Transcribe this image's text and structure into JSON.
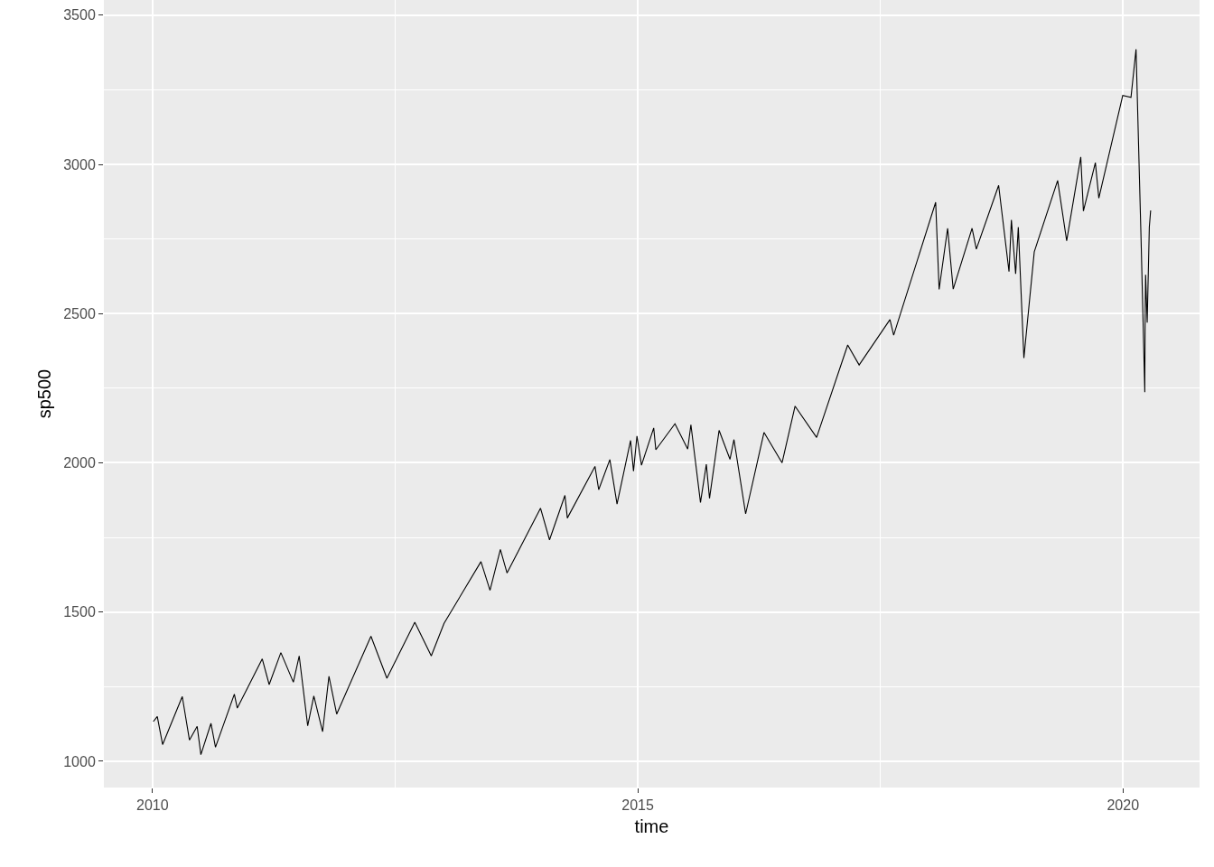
{
  "chart_data": {
    "type": "line",
    "xlabel": "time",
    "ylabel": "sp500",
    "x": [
      "2010-01-04",
      "2010-01-19",
      "2010-02-08",
      "2010-04-23",
      "2010-05-20",
      "2010-06-18",
      "2010-07-02",
      "2010-08-09",
      "2010-08-26",
      "2010-11-05",
      "2010-11-16",
      "2011-02-18",
      "2011-03-16",
      "2011-04-29",
      "2011-06-15",
      "2011-07-07",
      "2011-08-08",
      "2011-08-31",
      "2011-10-03",
      "2011-10-27",
      "2011-11-25",
      "2012-04-02",
      "2012-06-01",
      "2012-09-14",
      "2012-11-15",
      "2013-01-02",
      "2013-05-21",
      "2013-06-24",
      "2013-08-02",
      "2013-08-27",
      "2013-12-31",
      "2014-02-03",
      "2014-04-02",
      "2014-04-11",
      "2014-07-24",
      "2014-08-07",
      "2014-09-18",
      "2014-10-15",
      "2014-12-05",
      "2014-12-16",
      "2014-12-29",
      "2015-01-15",
      "2015-03-02",
      "2015-03-10",
      "2015-05-21",
      "2015-07-08",
      "2015-07-20",
      "2015-08-25",
      "2015-09-16",
      "2015-09-28",
      "2015-11-03",
      "2015-12-14",
      "2015-12-29",
      "2016-02-11",
      "2016-04-20",
      "2016-06-27",
      "2016-08-15",
      "2016-11-04",
      "2017-03-01",
      "2017-04-13",
      "2017-08-07",
      "2017-08-21",
      "2018-01-26",
      "2018-02-08",
      "2018-03-12",
      "2018-04-02",
      "2018-06-12",
      "2018-06-28",
      "2018-09-20",
      "2018-10-29",
      "2018-11-07",
      "2018-11-23",
      "2018-12-03",
      "2018-12-24",
      "2019-02-01",
      "2019-04-30",
      "2019-06-03",
      "2019-07-26",
      "2019-08-05",
      "2019-09-19",
      "2019-10-02",
      "2019-12-31",
      "2020-01-31",
      "2020-02-19",
      "2020-03-09",
      "2020-03-23",
      "2020-03-24",
      "2020-03-26",
      "2020-04-01",
      "2020-04-09",
      "2020-04-14"
    ],
    "series": [
      {
        "color": "#000000",
        "values": [
          1133,
          1150,
          1056,
          1217,
          1071,
          1117,
          1022,
          1127,
          1047,
          1225,
          1178,
          1343,
          1257,
          1364,
          1265,
          1353,
          1119,
          1219,
          1099,
          1285,
          1158,
          1419,
          1278,
          1466,
          1353,
          1462,
          1669,
          1573,
          1710,
          1631,
          1848,
          1742,
          1891,
          1815,
          1988,
          1910,
          2011,
          1862,
          2075,
          1972,
          2090,
          1992,
          2117,
          2044,
          2131,
          2046,
          2128,
          1867,
          1995,
          1881,
          2109,
          2012,
          2078,
          1829,
          2102,
          2000,
          2190,
          2085,
          2395,
          2328,
          2480,
          2428,
          2873,
          2581,
          2786,
          2582,
          2786,
          2716,
          2930,
          2641,
          2814,
          2633,
          2790,
          2351,
          2707,
          2946,
          2744,
          3025,
          2844,
          3006,
          2887,
          3231,
          3225,
          3386,
          2747,
          2237,
          2447,
          2630,
          2470,
          2790,
          2846
        ]
      }
    ],
    "xlim": [
      "2009-07-02",
      "2020-10-15"
    ],
    "xticks": [
      {
        "value": "2010-01-01",
        "label": "2010"
      },
      {
        "value": "2015-01-01",
        "label": "2015"
      },
      {
        "value": "2020-01-01",
        "label": "2020"
      }
    ],
    "ylim": [
      912,
      3551
    ],
    "yticks": [
      1000,
      1500,
      2000,
      2500,
      3000,
      3500
    ],
    "grid": true,
    "line_style": "solid",
    "marker": "none"
  }
}
